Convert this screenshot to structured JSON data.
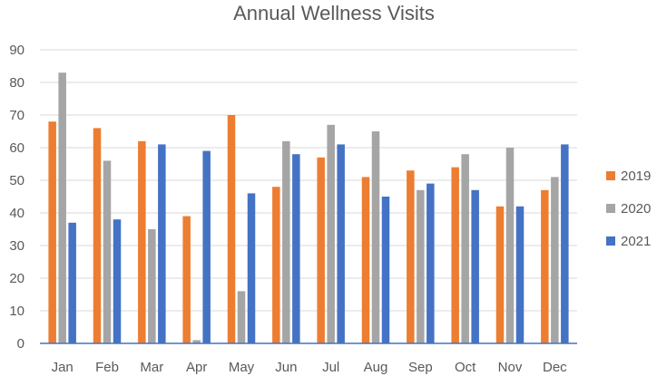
{
  "chart_data": {
    "type": "bar",
    "title": "Annual Wellness Visits",
    "xlabel": "",
    "ylabel": "",
    "categories": [
      "Jan",
      "Feb",
      "Mar",
      "Apr",
      "May",
      "Jun",
      "Jul",
      "Aug",
      "Sep",
      "Oct",
      "Nov",
      "Dec"
    ],
    "ylim": [
      0,
      90
    ],
    "yticks": [
      0,
      10,
      20,
      30,
      40,
      50,
      60,
      70,
      80,
      90
    ],
    "grid": true,
    "legend_position": "right",
    "series": [
      {
        "name": "2019",
        "color": "#ED7D31",
        "values": [
          68,
          66,
          62,
          39,
          70,
          48,
          57,
          51,
          53,
          54,
          42,
          47
        ]
      },
      {
        "name": "2020",
        "color": "#A5A5A5",
        "values": [
          83,
          56,
          35,
          1,
          16,
          62,
          67,
          65,
          47,
          58,
          60,
          51
        ]
      },
      {
        "name": "2021",
        "color": "#4472C4",
        "values": [
          37,
          38,
          61,
          59,
          46,
          58,
          61,
          45,
          49,
          47,
          42,
          61
        ]
      }
    ]
  }
}
